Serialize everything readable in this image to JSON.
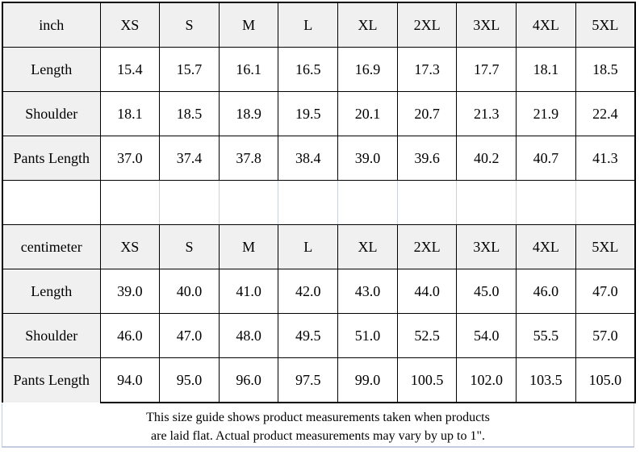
{
  "sizes": [
    "XS",
    "S",
    "M",
    "L",
    "XL",
    "2XL",
    "3XL",
    "4XL",
    "5XL"
  ],
  "sections": [
    {
      "unit_label": "inch",
      "rows": [
        {
          "label": "Length",
          "values": [
            "15.4",
            "15.7",
            "16.1",
            "16.5",
            "16.9",
            "17.3",
            "17.7",
            "18.1",
            "18.5"
          ]
        },
        {
          "label": "Shoulder",
          "values": [
            "18.1",
            "18.5",
            "18.9",
            "19.5",
            "20.1",
            "20.7",
            "21.3",
            "21.9",
            "22.4"
          ]
        },
        {
          "label": "Pants Length",
          "values": [
            "37.0",
            "37.4",
            "37.8",
            "38.4",
            "39.0",
            "39.6",
            "40.2",
            "40.7",
            "41.3"
          ]
        }
      ]
    },
    {
      "unit_label": "centimeter",
      "rows": [
        {
          "label": "Length",
          "values": [
            "39.0",
            "40.0",
            "41.0",
            "42.0",
            "43.0",
            "44.0",
            "45.0",
            "46.0",
            "47.0"
          ]
        },
        {
          "label": "Shoulder",
          "values": [
            "46.0",
            "47.0",
            "48.0",
            "49.5",
            "51.0",
            "52.5",
            "54.0",
            "55.5",
            "57.0"
          ]
        },
        {
          "label": "Pants Length",
          "values": [
            "94.0",
            "95.0",
            "96.0",
            "97.5",
            "99.0",
            "100.5",
            "102.0",
            "103.5",
            "105.0"
          ]
        }
      ]
    }
  ],
  "footer": {
    "line1": "This size guide shows product measurements taken when products",
    "line2": "are laid flat. Actual product measurements may vary by up to 1\"."
  },
  "colors": {
    "header_bg": "#f0f0f0",
    "table_border": "#000000",
    "empty_row_divider": "#ccd3e0",
    "footer_border": "#c2cedf"
  }
}
